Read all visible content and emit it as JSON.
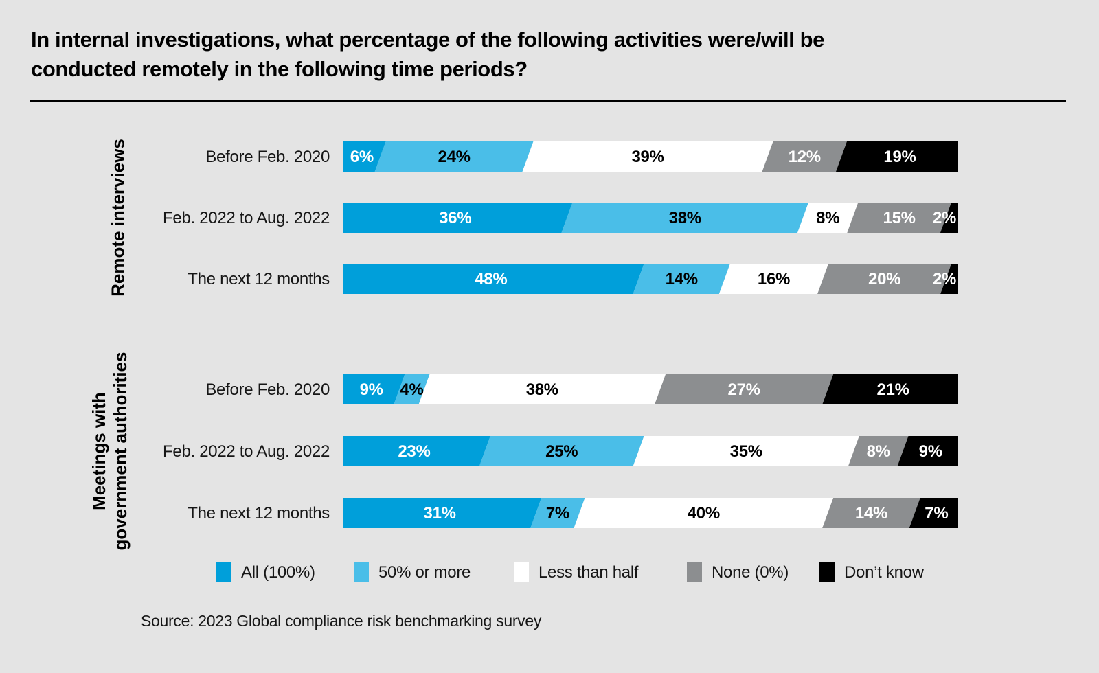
{
  "title": {
    "line1": "In internal investigations, what percentage of the following activities were/will be",
    "line2": "conducted remotely in the following time periods?"
  },
  "source": "Source: 2023 Global compliance risk benchmarking survey",
  "colors": {
    "all_100": "#009FDA",
    "fifty_or_more": "#4ABEE8",
    "less_than_half": "#FFFFFF",
    "none_0": "#8C8E90",
    "dont_know": "#000000",
    "background": "#E4E4E4"
  },
  "legend": [
    {
      "label": "All (100%)",
      "color_key": "all_100"
    },
    {
      "label": "50% or more",
      "color_key": "fifty_or_more"
    },
    {
      "label": "Less than half",
      "color_key": "less_than_half"
    },
    {
      "label": "None (0%)",
      "color_key": "none_0"
    },
    {
      "label": "Don’t know",
      "color_key": "dont_know"
    }
  ],
  "chart_data": {
    "type": "bar",
    "variant": "horizontal-stacked-percent",
    "unit": "%",
    "series": [
      "All (100%)",
      "50% or more",
      "Less than half",
      "None (0%)",
      "Don’t know"
    ],
    "groups": [
      {
        "label": "Remote interviews",
        "rows": [
          {
            "label": "Before Feb. 2020",
            "values": [
              6,
              24,
              39,
              12,
              19
            ]
          },
          {
            "label": "Feb. 2022 to Aug. 2022",
            "values": [
              36,
              38,
              8,
              15,
              2
            ]
          },
          {
            "label": "The next 12 months",
            "values": [
              48,
              14,
              16,
              20,
              2
            ]
          }
        ]
      },
      {
        "label": "Meetings with\ngovernment authorities",
        "rows": [
          {
            "label": "Before Feb. 2020",
            "values": [
              9,
              4,
              38,
              27,
              21
            ]
          },
          {
            "label": "Feb. 2022 to Aug. 2022",
            "values": [
              23,
              25,
              35,
              8,
              9
            ]
          },
          {
            "label": "The next 12 months",
            "values": [
              31,
              7,
              40,
              14,
              7
            ]
          }
        ]
      }
    ]
  }
}
